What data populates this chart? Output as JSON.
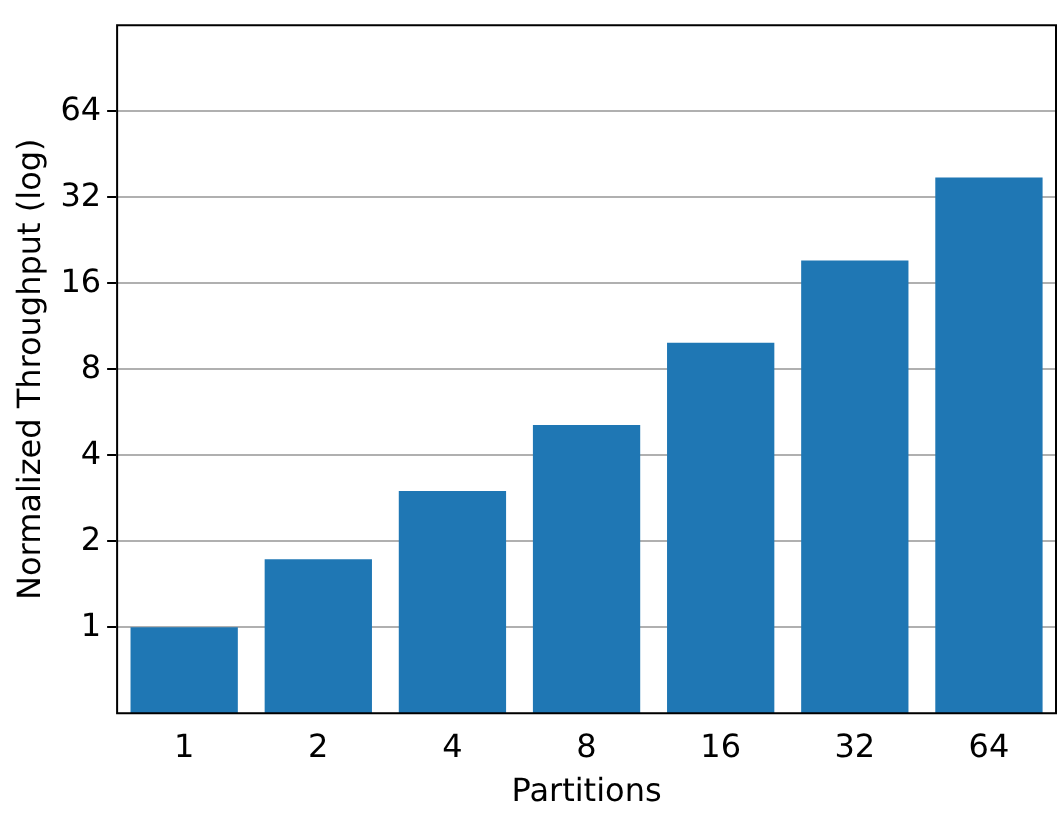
{
  "chart_data": {
    "type": "bar",
    "xlabel": "Partitions",
    "ylabel": "Normalized Throughput (log)",
    "categories": [
      "1",
      "2",
      "4",
      "8",
      "16",
      "32",
      "64"
    ],
    "values": [
      1.0,
      1.73,
      3.0,
      5.1,
      9.9,
      19.2,
      37.5
    ],
    "color": "#1f77b4",
    "log": "y",
    "ylim": [
      0.5,
      128
    ],
    "yticks": [
      1,
      2,
      4,
      8,
      16,
      32,
      64
    ],
    "grid": "y",
    "legend": false
  }
}
